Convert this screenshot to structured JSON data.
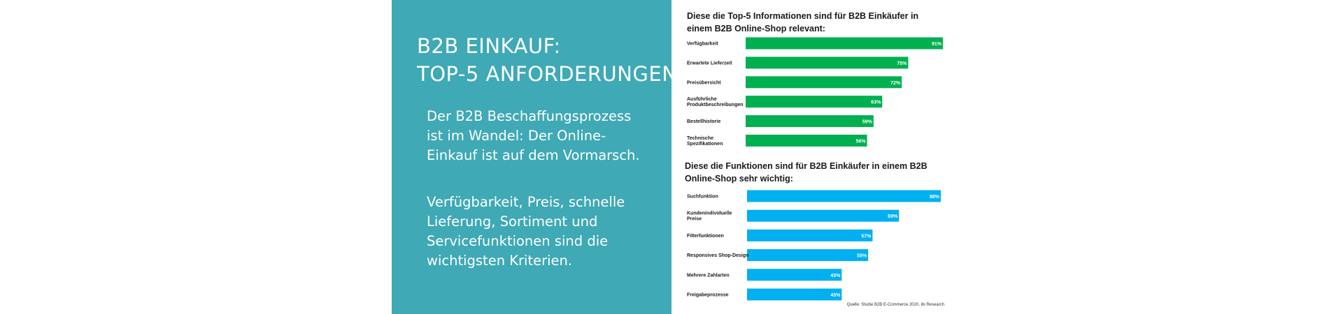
{
  "colors": {
    "teal_panel": "#3fa9b5",
    "green_bars": "#00b050",
    "blue_bars": "#00b0f0"
  },
  "panel": {
    "title_lines": [
      "B2B EINKAUF:",
      "TOP-5 ANFORDERUNGEN."
    ],
    "paragraph1_lines": [
      "Der B2B Beschaffungsprozess",
      "ist im Wandel: Der Online-",
      "Einkauf ist auf dem Vormarsch."
    ],
    "paragraph2_lines": [
      "Verfügbarkeit, Preis, schnelle",
      "Lieferung, Sortiment und",
      "Servicefunktionen sind die",
      "wichtigsten Kriterien."
    ]
  },
  "chart_data": [
    {
      "type": "bar",
      "orientation": "horizontal",
      "title_lines": [
        "Diese die Top-5 Informationen sind für B2B Einkäufer in",
        "einem B2B Online-Shop relevant:"
      ],
      "categories": [
        [
          "Verfügbarkeit"
        ],
        [
          "Erwartete Lieferzeit"
        ],
        [
          "Preisübersicht"
        ],
        [
          "Ausführliche",
          "Produktbeschreibungen"
        ],
        [
          "Bestellhistorie"
        ],
        [
          "Technische",
          "Spezifikationen"
        ]
      ],
      "values": [
        91,
        75,
        72,
        63,
        59,
        56
      ],
      "value_labels": [
        "91%",
        "75%",
        "72%",
        "63%",
        "59%",
        "56%"
      ],
      "unit": "%",
      "xlim": [
        0,
        91
      ],
      "color": "#00b050",
      "grid": false
    },
    {
      "type": "bar",
      "orientation": "horizontal",
      "title_lines": [
        "Diese die Funktionen sind für B2B Einkäufer in einem B2B",
        "Online-Shop sehr wichtig:"
      ],
      "categories": [
        [
          "Suchfunktion"
        ],
        [
          "Kundenindividuelle",
          "Preise"
        ],
        [
          "Filterfunktionen"
        ],
        [
          "Responsives Shop-Design"
        ],
        [
          "Mehrere Zahlarten"
        ],
        [
          "Freigabeprozesse"
        ]
      ],
      "values": [
        88,
        69,
        57,
        55,
        43,
        43
      ],
      "value_labels": [
        "88%",
        "69%",
        "57%",
        "55%",
        "43%",
        "43%"
      ],
      "unit": "%",
      "xlim": [
        0,
        88
      ],
      "color": "#00b0f0",
      "grid": false
    }
  ],
  "source": "Quelle: Studie B2B E-Commerce 2020, ibi Research"
}
